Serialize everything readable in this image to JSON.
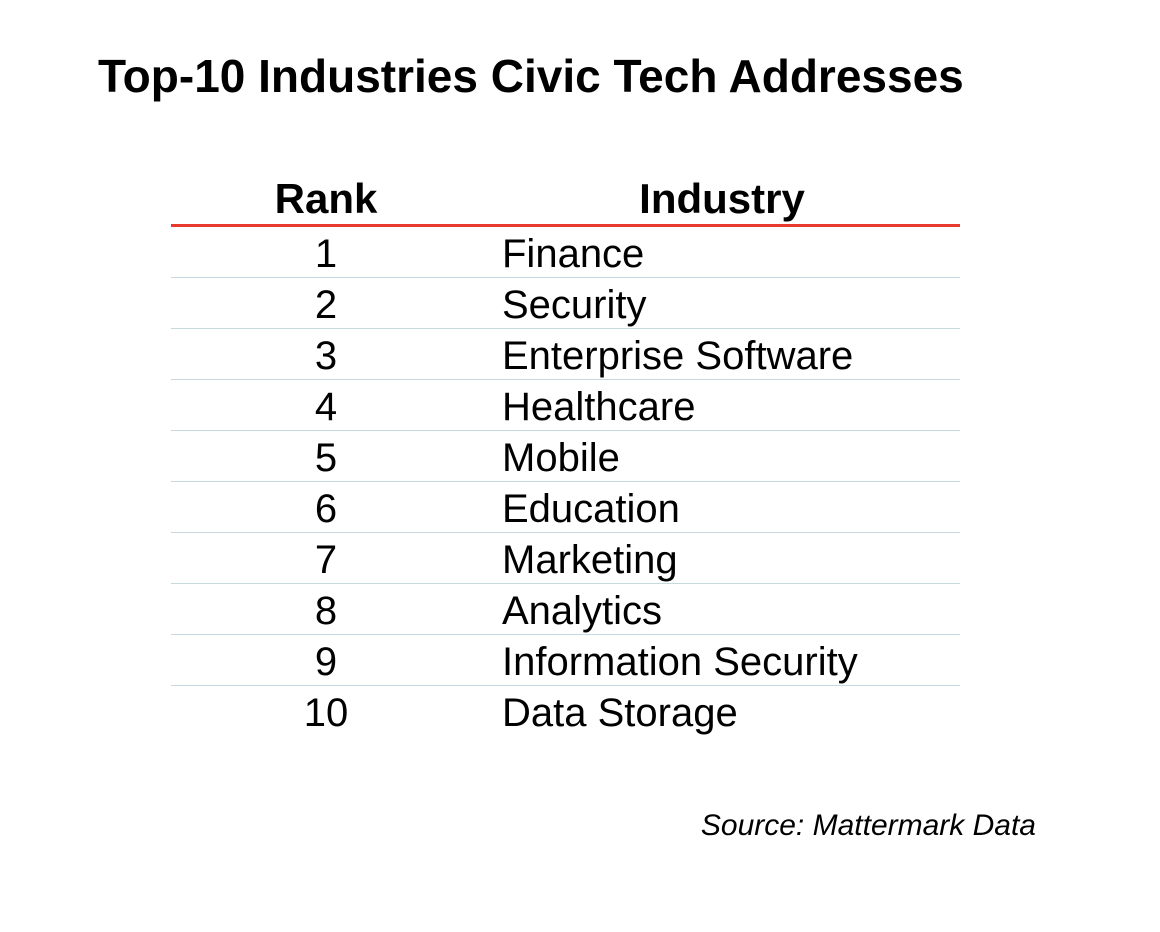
{
  "title": "Top-10 Industries Civic Tech Addresses",
  "chart_data": {
    "type": "table",
    "title": "Top-10 Industries Civic Tech Addresses",
    "columns": [
      "Rank",
      "Industry"
    ],
    "rows": [
      [
        "1",
        "Finance"
      ],
      [
        "2",
        "Security"
      ],
      [
        "3",
        "Enterprise Software"
      ],
      [
        "4",
        "Healthcare"
      ],
      [
        "5",
        "Mobile"
      ],
      [
        "6",
        "Education"
      ],
      [
        "7",
        "Marketing"
      ],
      [
        "8",
        "Analytics"
      ],
      [
        "9",
        "Information Security"
      ],
      [
        "10",
        "Data Storage"
      ]
    ],
    "header_rule_color": "#e8392e",
    "row_rule_color": "#c7d9e0"
  },
  "source": "Source: Mattermark Data"
}
